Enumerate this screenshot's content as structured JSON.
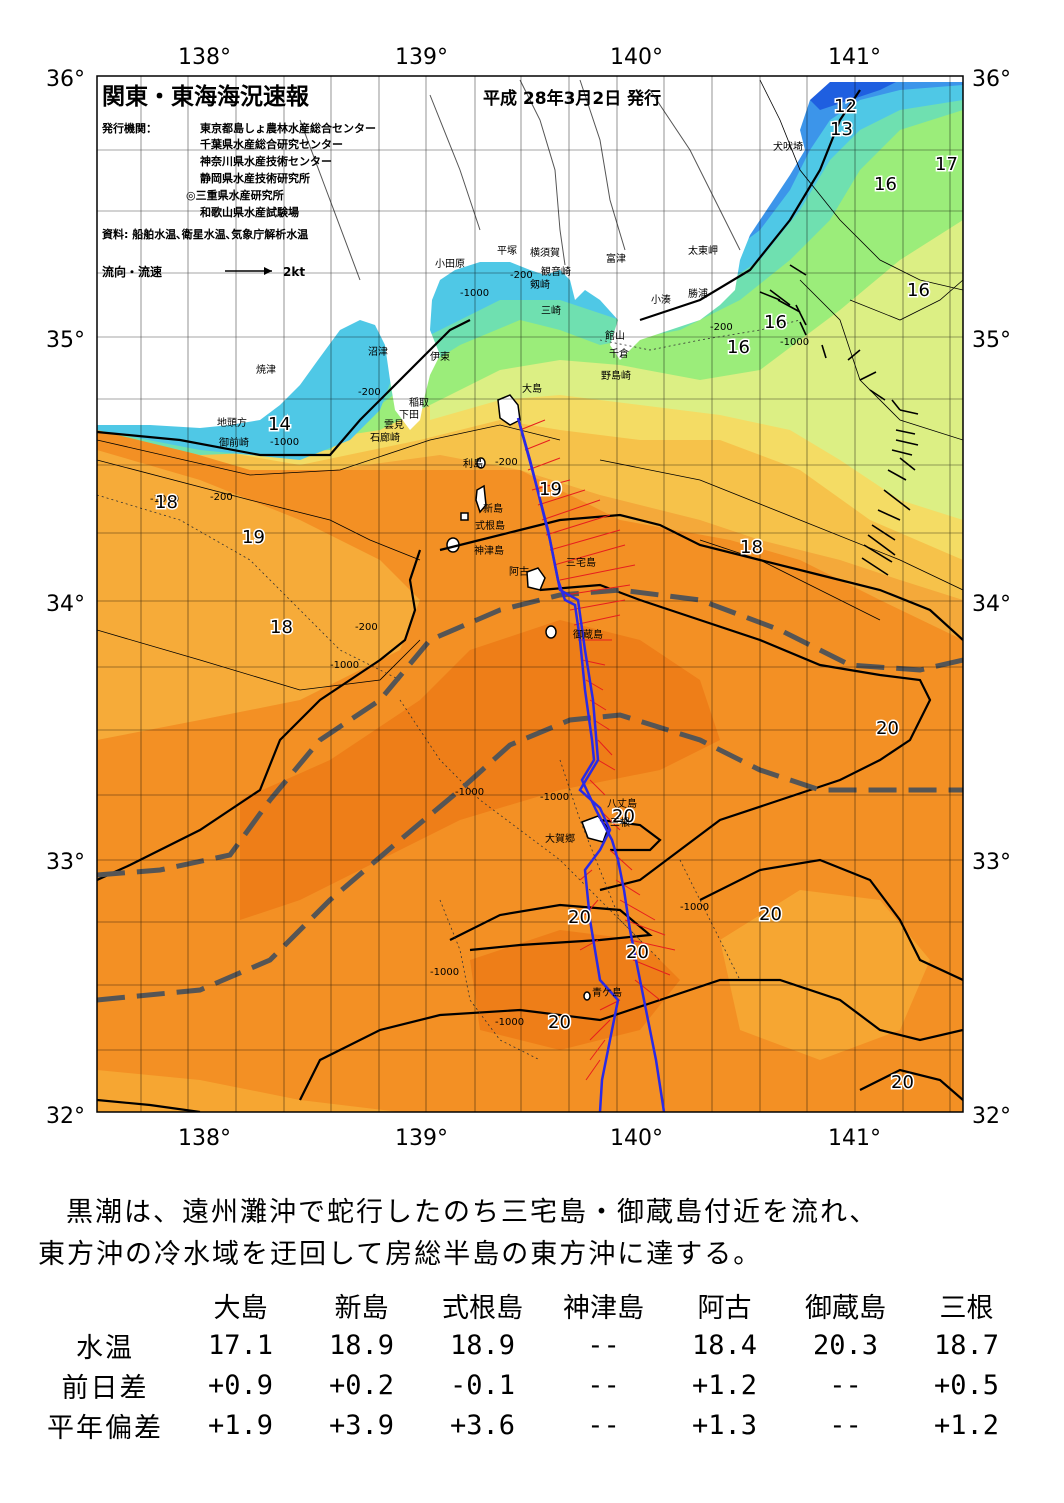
{
  "map": {
    "title": "関東・東海海況速報",
    "date": "平成 28年3月2日 発行",
    "issuer_label": "発行機関：",
    "issuers": [
      "東京都島しょ農林水産総合センター",
      "千葉県水産総合研究センター",
      "神奈川県水産技術センター",
      "静岡県水産技術研究所",
      "◎三重県水産研究所",
      "和歌山県水産試験場"
    ],
    "source": "資料: 船舶水温､衛星水温､気象庁解析水温",
    "legend_label": "流向・流速",
    "legend_scale": "2kt",
    "lon_labels": [
      "138°",
      "139°",
      "140°",
      "141°"
    ],
    "lat_labels": [
      "36°",
      "35°",
      "34°",
      "33°",
      "32°"
    ],
    "place_names": [
      "犬吠埼",
      "太東岬",
      "勝浦",
      "小湊",
      "富津",
      "館山",
      "千倉",
      "野島崎",
      "横須賀",
      "観音崎",
      "剱崎",
      "三崎",
      "平塚",
      "小田原",
      "沼津",
      "伊東",
      "稲取",
      "下田",
      "雲見",
      "石廊崎",
      "焼津",
      "御前崎",
      "地頭方",
      "大島",
      "利島",
      "新島",
      "式根島",
      "神津島",
      "三宅島",
      "阿古",
      "御蔵島",
      "八丈島",
      "三根",
      "大賀郷",
      "青ケ島"
    ],
    "isotherm_labels": [
      "12",
      "13",
      "14",
      "16",
      "17",
      "18",
      "19",
      "20"
    ],
    "depth_labels": [
      "-200",
      "-1000"
    ],
    "colors": {
      "t12": "#1f5fe0",
      "t13": "#3c95ea",
      "t14": "#4fc8e6",
      "t15": "#6fe0b0",
      "t16": "#9bed7a",
      "t17": "#dcef84",
      "t18": "#f6c24a",
      "t19": "#f4a93a",
      "t20": "#f39024",
      "t21": "#ee7e18",
      "kuroshio_axis": "#2a2ae6",
      "track": "#e61e1e"
    }
  },
  "summary": {
    "line1": "黒潮は、遠州灘沖で蛇行したのち三宅島・御蔵島付近を流れ、",
    "line2": "東方沖の冷水域を迂回して房総半島の東方沖に達する。"
  },
  "table": {
    "columns": [
      "大島",
      "新島",
      "式根島",
      "神津島",
      "阿古",
      "御蔵島",
      "三根"
    ],
    "rows": [
      {
        "label": "水温",
        "values": [
          "17.1",
          "18.9",
          "18.9",
          "--",
          "18.4",
          "20.3",
          "18.7"
        ]
      },
      {
        "label": "前日差",
        "values": [
          "+0.9",
          "+0.2",
          "-0.1",
          "--",
          "+1.2",
          "--",
          "+0.5"
        ]
      },
      {
        "label": "平年偏差",
        "values": [
          "+1.9",
          "+3.9",
          "+3.6",
          "--",
          "+1.3",
          "--",
          "+1.2"
        ]
      }
    ]
  }
}
